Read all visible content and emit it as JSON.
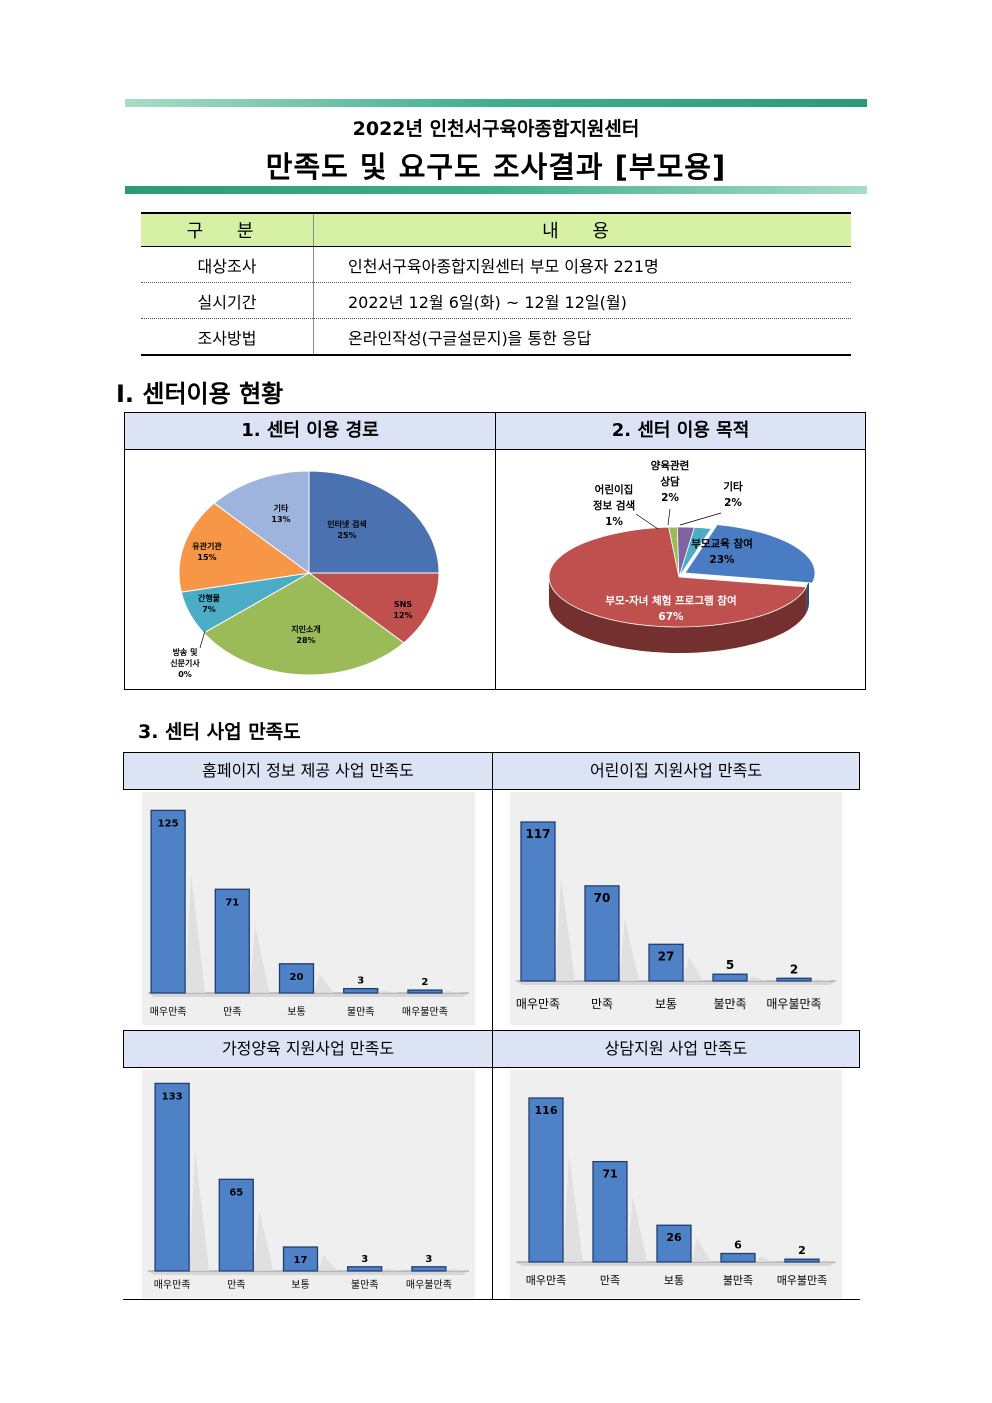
{
  "header": {
    "subtitle": "2022년 인천서구육아종합지원센터",
    "title": "만족도 및 요구도 조사결과 [부모용]"
  },
  "info_table": {
    "headers": [
      "구 분",
      "내 용"
    ],
    "rows": [
      {
        "key": "대상조사",
        "value": "인천서구육아종합지원센터 부모 이용자 221명"
      },
      {
        "key": "실시기간",
        "value": "2022년 12월 6일(화) ~ 12월 12일(월)"
      },
      {
        "key": "조사방법",
        "value": "온라인작성(구글설문지)을 통한 응답"
      }
    ]
  },
  "section1": {
    "title": "Ⅰ. 센터이용 현황",
    "chart1_title": "1. 센터 이용 경로",
    "chart2_title": "2. 센터 이용 목적"
  },
  "section3": {
    "title": "3. 센터 사업 만족도",
    "panel_titles": [
      "홈페이지 정보 제공 사업 만족도",
      "어린이집 지원사업 만족도",
      "가정양육 지원사업 만족도",
      "상담지원 사업 만족도"
    ]
  },
  "chart_data": [
    {
      "type": "pie",
      "labels": [
        "인터넷 검색",
        "SNS",
        "지인소개",
        "방송 및 신문기사",
        "간행물",
        "유관기관",
        "기타"
      ],
      "values": [
        25,
        12,
        28,
        0,
        7,
        15,
        13
      ],
      "value_labels": [
        "25%",
        "12%",
        "28%",
        "0%",
        "7%",
        "15%",
        "13%"
      ],
      "colors": [
        "#4a72b0",
        "#c0504d",
        "#9bbb59",
        "#4bacc6",
        "#4bacc6",
        "#f79646",
        "#9fb4dc"
      ]
    },
    {
      "type": "pie",
      "labels": [
        "부모교육 참여",
        "부모-자녀 체험 프로그램 참여",
        "어린이집 정보 검색",
        "양육관련 상담",
        "기타"
      ],
      "values": [
        23,
        67,
        1,
        2,
        2
      ],
      "value_labels": [
        "23%",
        "67%",
        "1%",
        "2%",
        "2%"
      ],
      "colors": [
        "#4a7cc4",
        "#c0504d",
        "#9bbb59",
        "#8064a2",
        "#4bacc6"
      ]
    },
    {
      "type": "bar",
      "title": "홈페이지 정보 제공 사업 만족도",
      "categories": [
        "매우만족",
        "만족",
        "보통",
        "불만족",
        "매우불만족"
      ],
      "values": [
        125,
        71,
        20,
        3,
        2
      ]
    },
    {
      "type": "bar",
      "title": "어린이집 지원사업 만족도",
      "categories": [
        "매우만족",
        "만족",
        "보통",
        "불만족",
        "매우불만족"
      ],
      "values": [
        117,
        70,
        27,
        5,
        2
      ]
    },
    {
      "type": "bar",
      "title": "가정양육 지원사업 만족도",
      "categories": [
        "매우만족",
        "만족",
        "보통",
        "불만족",
        "매우불만족"
      ],
      "values": [
        133,
        65,
        17,
        3,
        3
      ]
    },
    {
      "type": "bar",
      "title": "상담지원 사업 만족도",
      "categories": [
        "매우만족",
        "만족",
        "보통",
        "불만족",
        "매우불만족"
      ],
      "values": [
        116,
        71,
        26,
        6,
        2
      ]
    }
  ]
}
